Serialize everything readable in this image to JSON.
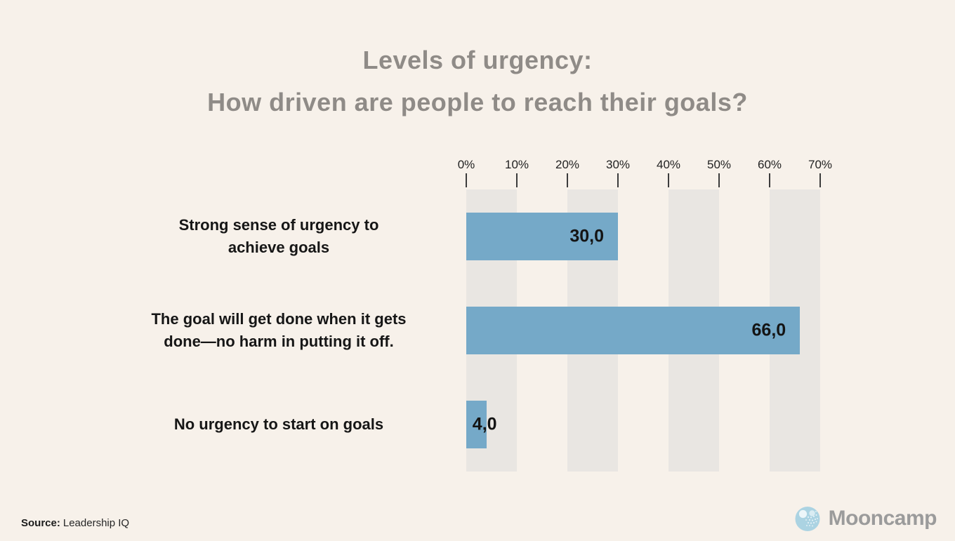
{
  "title": {
    "line1": "Levels of urgency:",
    "line2": "How driven are people to reach their goals?"
  },
  "chart_data": {
    "type": "bar",
    "orientation": "horizontal",
    "title": "Levels of urgency: How driven are people to reach their goals?",
    "categories": [
      "Strong sense of urgency to achieve goals",
      "The goal will get done when it gets done—no harm in putting it off.",
      "No urgency to start on goals"
    ],
    "category_lines": [
      [
        "Strong sense of urgency to",
        "achieve goals"
      ],
      [
        "The goal will get done when it gets",
        "done—no harm in putting it off."
      ],
      [
        "No urgency to start on goals"
      ]
    ],
    "values": [
      30.0,
      66.0,
      4.0
    ],
    "value_labels": [
      "30,0",
      "66,0",
      "4,0"
    ],
    "x_ticks": [
      "0%",
      "10%",
      "20%",
      "30%",
      "40%",
      "50%",
      "60%",
      "70%"
    ],
    "xlim": [
      0,
      70
    ],
    "grid": "alternating-vertical-bands",
    "legend": "none",
    "unit": "%"
  },
  "footer": {
    "source_label": "Source:",
    "source_value": "Leadership IQ",
    "brand_name": "Mooncamp",
    "brand_icon": "moon-icon"
  },
  "colors": {
    "background": "#f7f1ea",
    "band": "#e9e6e2",
    "bar": "#75a9c8",
    "title_text": "#8f8b87",
    "category_text": "#161616",
    "value_text": "#141414",
    "tick_text": "#222222",
    "brand_text": "#9b9b9b",
    "moon": "#abd3e2"
  }
}
